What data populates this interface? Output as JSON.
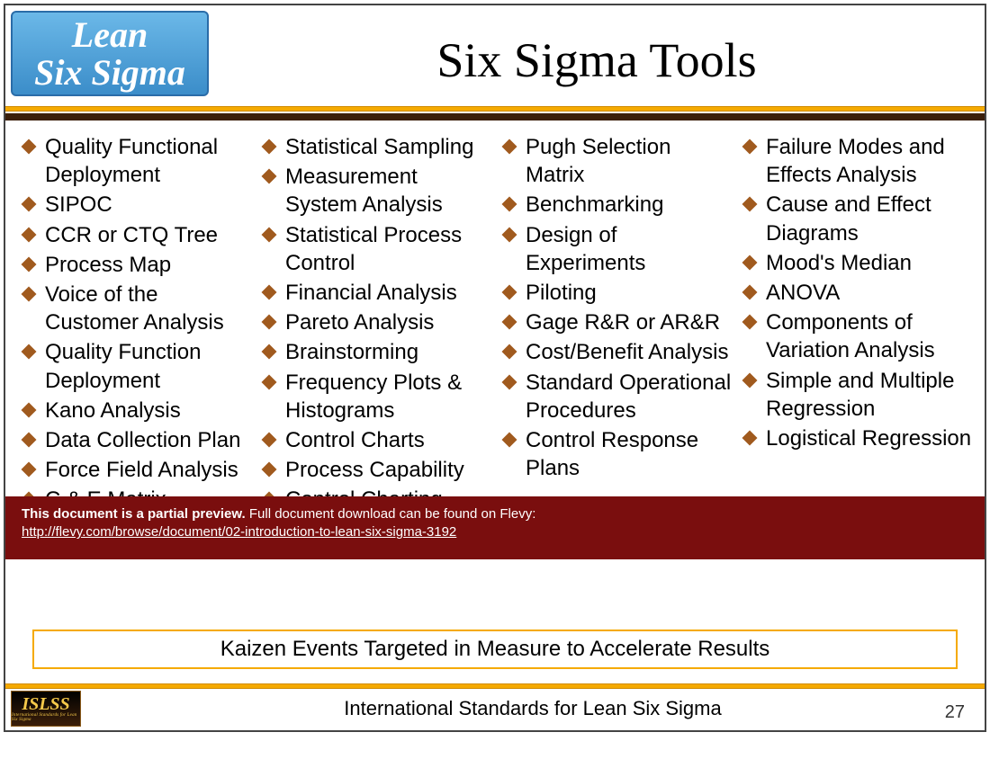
{
  "logo": {
    "line1": "Lean",
    "line2": "Six Sigma"
  },
  "title": "Six Sigma Tools",
  "columns": [
    [
      "Quality Functional Deployment",
      "SIPOC",
      "CCR or CTQ Tree",
      "Process Map",
      "Voice of the Customer Analysis",
      "Quality Function Deployment",
      "Kano Analysis",
      "Data Collection Plan",
      "Force Field Analysis",
      "C & E Matrix"
    ],
    [
      "Statistical Sampling",
      "Measurement System Analysis",
      "Statistical Process Control",
      "Financial Analysis",
      "Pareto Analysis",
      "Brainstorming",
      "Frequency Plots & Histograms",
      "Control Charts",
      "Process Capability",
      "Control Charting"
    ],
    [
      "Pugh Selection Matrix",
      "Benchmarking",
      "Design of Experiments",
      "Piloting",
      "Gage R&R or AR&R",
      "Cost/Benefit Analysis",
      "Standard Operational Procedures",
      "Control Response Plans"
    ],
    [
      "Failure Modes and Effects Analysis",
      "Cause and Effect Diagrams",
      "Mood's Median",
      "ANOVA",
      "Components of Variation Analysis",
      "Simple and Multiple Regression",
      "Logistical Regression"
    ]
  ],
  "preview": {
    "bold": "This document is a partial preview.",
    "rest": "  Full document download can be found on Flevy:",
    "link": "http://flevy.com/browse/document/02-introduction-to-lean-six-sigma-3192"
  },
  "banner": "Kaizen Events Targeted in Measure to Accelerate Results",
  "footer": {
    "islss": "ISLSS",
    "islss_sub": "International Standards for Lean Six Sigma",
    "title": "International Standards for Lean Six Sigma",
    "page": "27"
  },
  "colors": {
    "gold": "#f5aa00",
    "bullet": "#a05a1e",
    "banner_bg": "#7a0e0e",
    "logo_grad_top": "#6bb8e8",
    "logo_grad_bot": "#3b8dc9"
  }
}
